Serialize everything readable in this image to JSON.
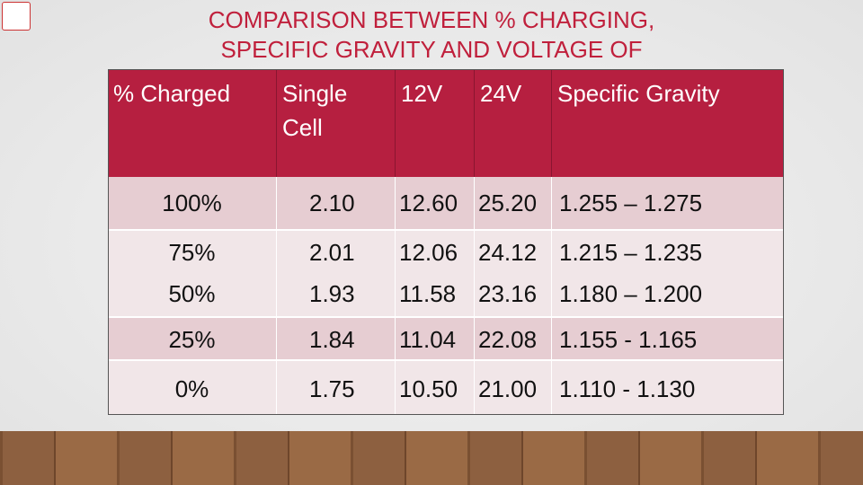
{
  "title": {
    "lines": [
      "COMPARISON BETWEEN % CHARGING,",
      "SPECIFIC GRAVITY AND VOLTAGE OF"
    ]
  },
  "table": {
    "header": [
      "% Charged",
      "Single Cell",
      "12V",
      "24V",
      "Specific Gravity"
    ],
    "rows": [
      [
        "100%",
        "2.10",
        "12.60",
        "25.20",
        "1.255 – 1.275"
      ],
      [
        "75%",
        "2.01",
        "12.06",
        "24.12",
        "1.215 – 1.235"
      ],
      [
        "50%",
        "1.93",
        "11.58",
        "23.16",
        "1.180 – 1.200"
      ],
      [
        "25%",
        "1.84",
        "11.04",
        "22.08",
        "1.155 - 1.165"
      ],
      [
        "0%",
        "1.75",
        "10.50",
        "21.00",
        "1.110 - 1.130"
      ]
    ]
  }
}
